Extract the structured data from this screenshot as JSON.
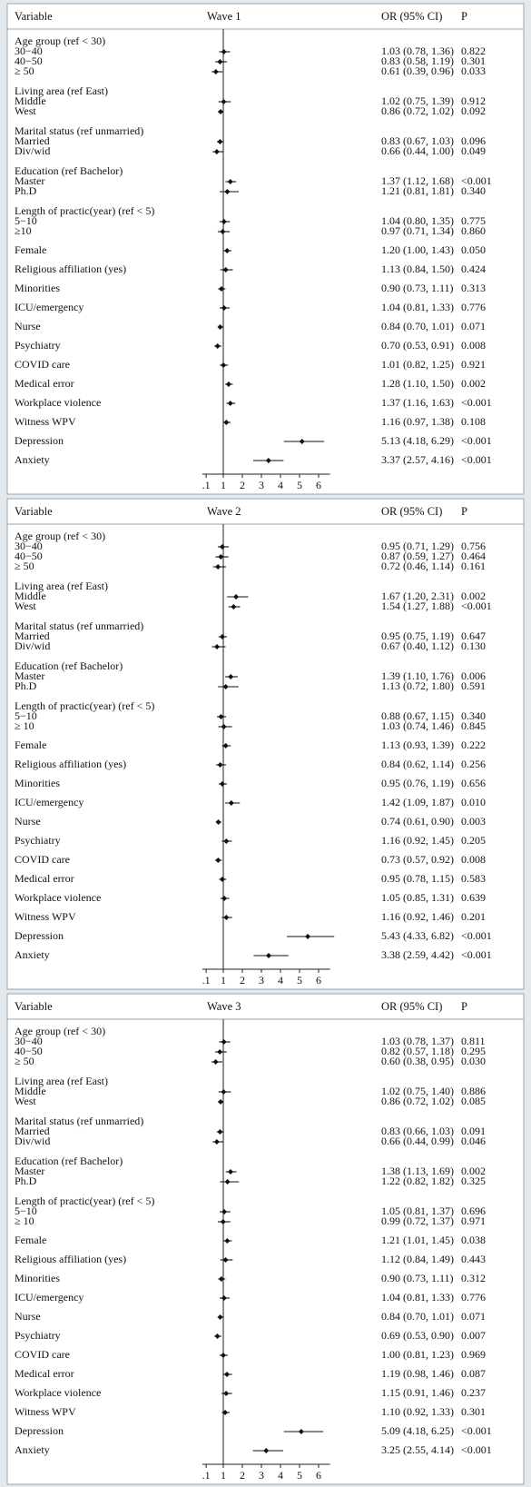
{
  "chart_data": [
    {
      "type": "forest",
      "title": "Wave 1",
      "column_headers": [
        "Variable",
        "OR (95% CI)",
        "P"
      ],
      "reference_line": 1,
      "xlim": [
        -0.1,
        6.6
      ],
      "xticks": [
        {
          "value": 0.1,
          "label": ".1"
        },
        1,
        2,
        3,
        4,
        5,
        6
      ],
      "rows": [
        {
          "label": "Age group (ref < 30)",
          "rows": [
            {
              "label": "30−40",
              "value": 1.03,
              "ci": [
                0.78,
                1.36
              ],
              "value_label": "1.03 (0.78, 1.36)",
              "p": "0.822"
            },
            {
              "label": "40−50",
              "value": 0.83,
              "ci": [
                0.58,
                1.19
              ],
              "value_label": "0.83 (0.58, 1.19)",
              "p": "0.301"
            },
            {
              "label": "≥ 50",
              "value": 0.61,
              "ci": [
                0.39,
                0.96
              ],
              "value_label": "0.61 (0.39, 0.96)",
              "p": "0.033"
            }
          ]
        },
        {
          "label": "Living area (ref East)",
          "rows": [
            {
              "label": "Middle",
              "value": 1.02,
              "ci": [
                0.75,
                1.39
              ],
              "value_label": "1.02 (0.75, 1.39)",
              "p": "0.912"
            },
            {
              "label": "West",
              "value": 0.86,
              "ci": [
                0.72,
                1.02
              ],
              "value_label": "0.86 (0.72, 1.02)",
              "p": "0.092"
            }
          ]
        },
        {
          "label": "Marital status (ref unmarried)",
          "rows": [
            {
              "label": "Married",
              "value": 0.83,
              "ci": [
                0.67,
                1.03
              ],
              "value_label": "0.83 (0.67, 1.03)",
              "p": "0.096"
            },
            {
              "label": "Div/wid",
              "value": 0.66,
              "ci": [
                0.44,
                1.0
              ],
              "value_label": "0.66 (0.44, 1.00)",
              "p": "0.049"
            }
          ]
        },
        {
          "label": "Education (ref Bachelor)",
          "rows": [
            {
              "label": "Master",
              "value": 1.37,
              "ci": [
                1.12,
                1.68
              ],
              "value_label": "1.37 (1.12, 1.68)",
              "p": "<0.001"
            },
            {
              "label": "Ph.D",
              "value": 1.21,
              "ci": [
                0.81,
                1.81
              ],
              "value_label": "1.21 (0.81, 1.81)",
              "p": "0.340"
            }
          ]
        },
        {
          "label": "Length of practic(year) (ref < 5)",
          "rows": [
            {
              "label": "5−10",
              "value": 1.04,
              "ci": [
                0.8,
                1.35
              ],
              "value_label": "1.04 (0.80, 1.35)",
              "p": "0.775"
            },
            {
              "label": "≥10",
              "value": 0.97,
              "ci": [
                0.71,
                1.34
              ],
              "value_label": "0.97 (0.71, 1.34)",
              "p": "0.860"
            }
          ]
        },
        {
          "label": "Female",
          "value": 1.2,
          "ci": [
            1.0,
            1.43
          ],
          "value_label": "1.20 (1.00, 1.43)",
          "p": "0.050"
        },
        {
          "label": "Religious affiliation (yes)",
          "value": 1.13,
          "ci": [
            0.84,
            1.5
          ],
          "value_label": "1.13 (0.84, 1.50)",
          "p": "0.424"
        },
        {
          "label": "Minorities",
          "value": 0.9,
          "ci": [
            0.73,
            1.11
          ],
          "value_label": "0.90 (0.73, 1.11)",
          "p": "0.313"
        },
        {
          "label": "ICU/emergency",
          "value": 1.04,
          "ci": [
            0.81,
            1.33
          ],
          "value_label": "1.04 (0.81, 1.33)",
          "p": "0.776"
        },
        {
          "label": "Nurse",
          "value": 0.84,
          "ci": [
            0.7,
            1.01
          ],
          "value_label": "0.84 (0.70, 1.01)",
          "p": "0.071"
        },
        {
          "label": "Psychiatry",
          "value": 0.7,
          "ci": [
            0.53,
            0.91
          ],
          "value_label": "0.70 (0.53, 0.91)",
          "p": "0.008"
        },
        {
          "label": "COVID care",
          "value": 1.01,
          "ci": [
            0.82,
            1.25
          ],
          "value_label": "1.01 (0.82, 1.25)",
          "p": "0.921"
        },
        {
          "label": "Medical error",
          "value": 1.28,
          "ci": [
            1.1,
            1.5
          ],
          "value_label": "1.28 (1.10, 1.50)",
          "p": "0.002"
        },
        {
          "label": "Workplace violence",
          "value": 1.37,
          "ci": [
            1.16,
            1.63
          ],
          "value_label": "1.37 (1.16, 1.63)",
          "p": "<0.001"
        },
        {
          "label": "Witness WPV",
          "value": 1.16,
          "ci": [
            0.97,
            1.38
          ],
          "value_label": "1.16 (0.97, 1.38)",
          "p": "0.108"
        },
        {
          "label": "Depression",
          "value": 5.13,
          "ci": [
            4.18,
            6.29
          ],
          "value_label": "5.13 (4.18, 6.29)",
          "p": "<0.001"
        },
        {
          "label": "Anxiety",
          "value": 3.37,
          "ci": [
            2.57,
            4.16
          ],
          "value_label": "3.37 (2.57, 4.16)",
          "p": "<0.001"
        }
      ]
    },
    {
      "type": "forest",
      "title": "Wave 2",
      "column_headers": [
        "Variable",
        "OR (95% CI)",
        "P"
      ],
      "reference_line": 1,
      "xlim": [
        -0.1,
        6.6
      ],
      "xticks": [
        {
          "value": 0.1,
          "label": ".1"
        },
        1,
        2,
        3,
        4,
        5,
        6
      ],
      "rows": [
        {
          "label": "Age group (ref < 30)",
          "rows": [
            {
              "label": "30−40",
              "value": 0.95,
              "ci": [
                0.71,
                1.29
              ],
              "value_label": "0.95 (0.71, 1.29)",
              "p": "0.756"
            },
            {
              "label": "40−50",
              "value": 0.87,
              "ci": [
                0.59,
                1.27
              ],
              "value_label": "0.87 (0.59, 1.27)",
              "p": "0.464"
            },
            {
              "label": "≥ 50",
              "value": 0.72,
              "ci": [
                0.46,
                1.14
              ],
              "value_label": "0.72 (0.46, 1.14)",
              "p": "0.161"
            }
          ]
        },
        {
          "label": "Living area (ref East)",
          "rows": [
            {
              "label": "Middle",
              "value": 1.67,
              "ci": [
                1.2,
                2.31
              ],
              "value_label": "1.67 (1.20, 2.31)",
              "p": "0.002"
            },
            {
              "label": "West",
              "value": 1.54,
              "ci": [
                1.27,
                1.88
              ],
              "value_label": "1.54 (1.27, 1.88)",
              "p": "<0.001"
            }
          ]
        },
        {
          "label": "Marital status (ref unmarried)",
          "rows": [
            {
              "label": "Married",
              "value": 0.95,
              "ci": [
                0.75,
                1.19
              ],
              "value_label": "0.95 (0.75, 1.19)",
              "p": "0.647"
            },
            {
              "label": "Div/wid",
              "value": 0.67,
              "ci": [
                0.4,
                1.12
              ],
              "value_label": "0.67 (0.40, 1.12)",
              "p": "0.130"
            }
          ]
        },
        {
          "label": "Education (ref Bachelor)",
          "rows": [
            {
              "label": "Master",
              "value": 1.39,
              "ci": [
                1.1,
                1.76
              ],
              "value_label": "1.39 (1.10, 1.76)",
              "p": "0.006"
            },
            {
              "label": "Ph.D",
              "value": 1.13,
              "ci": [
                0.72,
                1.8
              ],
              "value_label": "1.13 (0.72, 1.80)",
              "p": "0.591"
            }
          ]
        },
        {
          "label": "Length of practic(year) (ref < 5)",
          "rows": [
            {
              "label": "5−10",
              "value": 0.88,
              "ci": [
                0.67,
                1.15
              ],
              "value_label": "0.88 (0.67, 1.15)",
              "p": "0.340"
            },
            {
              "label": "≥ 10",
              "value": 1.03,
              "ci": [
                0.74,
                1.46
              ],
              "value_label": "1.03 (0.74, 1.46)",
              "p": "0.845"
            }
          ]
        },
        {
          "label": "Female",
          "value": 1.13,
          "ci": [
            0.93,
            1.39
          ],
          "value_label": "1.13 (0.93, 1.39)",
          "p": "0.222"
        },
        {
          "label": "Religious affiliation (yes)",
          "value": 0.84,
          "ci": [
            0.62,
            1.14
          ],
          "value_label": "0.84 (0.62, 1.14)",
          "p": "0.256"
        },
        {
          "label": "Minorities",
          "value": 0.95,
          "ci": [
            0.76,
            1.19
          ],
          "value_label": "0.95 (0.76, 1.19)",
          "p": "0.656"
        },
        {
          "label": "ICU/emergency",
          "value": 1.42,
          "ci": [
            1.09,
            1.87
          ],
          "value_label": "1.42 (1.09, 1.87)",
          "p": "0.010"
        },
        {
          "label": "Nurse",
          "value": 0.74,
          "ci": [
            0.61,
            0.9
          ],
          "value_label": "0.74 (0.61, 0.90)",
          "p": "0.003"
        },
        {
          "label": "Psychiatry",
          "value": 1.16,
          "ci": [
            0.92,
            1.45
          ],
          "value_label": "1.16 (0.92, 1.45)",
          "p": "0.205"
        },
        {
          "label": "COVID care",
          "value": 0.73,
          "ci": [
            0.57,
            0.92
          ],
          "value_label": "0.73 (0.57, 0.92)",
          "p": "0.008"
        },
        {
          "label": "Medical error",
          "value": 0.95,
          "ci": [
            0.78,
            1.15
          ],
          "value_label": "0.95 (0.78, 1.15)",
          "p": "0.583"
        },
        {
          "label": "Workplace violence",
          "value": 1.05,
          "ci": [
            0.85,
            1.31
          ],
          "value_label": "1.05 (0.85, 1.31)",
          "p": "0.639"
        },
        {
          "label": "Witness WPV",
          "value": 1.16,
          "ci": [
            0.92,
            1.46
          ],
          "value_label": "1.16 (0.92, 1.46)",
          "p": "0.201"
        },
        {
          "label": "Depression",
          "value": 5.43,
          "ci": [
            4.33,
            6.82
          ],
          "value_label": "5.43 (4.33, 6.82)",
          "p": "<0.001"
        },
        {
          "label": "Anxiety",
          "value": 3.38,
          "ci": [
            2.59,
            4.42
          ],
          "value_label": "3.38 (2.59, 4.42)",
          "p": "<0.001"
        }
      ]
    },
    {
      "type": "forest",
      "title": "Wave 3",
      "column_headers": [
        "Variable",
        "OR (95% CI)",
        "P"
      ],
      "reference_line": 1,
      "xlim": [
        -0.1,
        6.6
      ],
      "xticks": [
        {
          "value": 0.1,
          "label": ".1"
        },
        1,
        2,
        3,
        4,
        5,
        6
      ],
      "rows": [
        {
          "label": "Age group (ref < 30)",
          "rows": [
            {
              "label": "30−40",
              "value": 1.03,
              "ci": [
                0.78,
                1.37
              ],
              "value_label": "1.03 (0.78, 1.37)",
              "p": "0.811"
            },
            {
              "label": "40−50",
              "value": 0.82,
              "ci": [
                0.57,
                1.18
              ],
              "value_label": "0.82 (0.57, 1.18)",
              "p": "0.295"
            },
            {
              "label": "≥ 50",
              "value": 0.6,
              "ci": [
                0.38,
                0.95
              ],
              "value_label": "0.60 (0.38, 0.95)",
              "p": "0.030"
            }
          ]
        },
        {
          "label": "Living area (ref East)",
          "rows": [
            {
              "label": "Middle",
              "value": 1.02,
              "ci": [
                0.75,
                1.4
              ],
              "value_label": "1.02 (0.75, 1.40)",
              "p": "0.886"
            },
            {
              "label": "West",
              "value": 0.86,
              "ci": [
                0.72,
                1.02
              ],
              "value_label": "0.86 (0.72, 1.02)",
              "p": "0.085"
            }
          ]
        },
        {
          "label": "Marital status (ref unmarried)",
          "rows": [
            {
              "label": "Married",
              "value": 0.83,
              "ci": [
                0.66,
                1.03
              ],
              "value_label": "0.83 (0.66, 1.03)",
              "p": "0.091"
            },
            {
              "label": "Div/wid",
              "value": 0.66,
              "ci": [
                0.44,
                0.99
              ],
              "value_label": "0.66 (0.44, 0.99)",
              "p": "0.046"
            }
          ]
        },
        {
          "label": "Education (ref Bachelor)",
          "rows": [
            {
              "label": "Master",
              "value": 1.38,
              "ci": [
                1.13,
                1.69
              ],
              "value_label": "1.38 (1.13, 1.69)",
              "p": "0.002"
            },
            {
              "label": "Ph.D",
              "value": 1.22,
              "ci": [
                0.82,
                1.82
              ],
              "value_label": "1.22 (0.82, 1.82)",
              "p": "0.325"
            }
          ]
        },
        {
          "label": "Length of practic(year) (ref < 5)",
          "rows": [
            {
              "label": "5−10",
              "value": 1.05,
              "ci": [
                0.81,
                1.37
              ],
              "value_label": "1.05 (0.81, 1.37)",
              "p": "0.696"
            },
            {
              "label": "≥ 10",
              "value": 0.99,
              "ci": [
                0.72,
                1.37
              ],
              "value_label": "0.99 (0.72, 1.37)",
              "p": "0.971"
            }
          ]
        },
        {
          "label": "Female",
          "value": 1.21,
          "ci": [
            1.01,
            1.45
          ],
          "value_label": "1.21 (1.01, 1.45)",
          "p": "0.038"
        },
        {
          "label": "Religious affiliation (yes)",
          "value": 1.12,
          "ci": [
            0.84,
            1.49
          ],
          "value_label": "1.12 (0.84, 1.49)",
          "p": "0.443"
        },
        {
          "label": "Minorities",
          "value": 0.9,
          "ci": [
            0.73,
            1.11
          ],
          "value_label": "0.90 (0.73, 1.11)",
          "p": "0.312"
        },
        {
          "label": "ICU/emergency",
          "value": 1.04,
          "ci": [
            0.81,
            1.33
          ],
          "value_label": "1.04 (0.81, 1.33)",
          "p": "0.776"
        },
        {
          "label": "Nurse",
          "value": 0.84,
          "ci": [
            0.7,
            1.01
          ],
          "value_label": "0.84 (0.70, 1.01)",
          "p": "0.071"
        },
        {
          "label": "Psychiatry",
          "value": 0.69,
          "ci": [
            0.53,
            0.9
          ],
          "value_label": "0.69 (0.53, 0.90)",
          "p": "0.007"
        },
        {
          "label": "COVID care",
          "value": 1.0,
          "ci": [
            0.81,
            1.23
          ],
          "value_label": "1.00 (0.81, 1.23)",
          "p": "0.969"
        },
        {
          "label": "Medical error",
          "value": 1.19,
          "ci": [
            0.98,
            1.46
          ],
          "value_label": "1.19 (0.98, 1.46)",
          "p": "0.087"
        },
        {
          "label": "Workplace violence",
          "value": 1.15,
          "ci": [
            0.91,
            1.46
          ],
          "value_label": "1.15 (0.91, 1.46)",
          "p": "0.237"
        },
        {
          "label": "Witness WPV",
          "value": 1.1,
          "ci": [
            0.92,
            1.33
          ],
          "value_label": "1.10 (0.92, 1.33)",
          "p": "0.301"
        },
        {
          "label": "Depression",
          "value": 5.09,
          "ci": [
            4.18,
            6.25
          ],
          "value_label": "5.09 (4.18, 6.25)",
          "p": "<0.001"
        },
        {
          "label": "Anxiety",
          "value": 3.25,
          "ci": [
            2.55,
            4.14
          ],
          "value_label": "3.25 (2.55, 4.14)",
          "p": "<0.001"
        }
      ]
    }
  ]
}
